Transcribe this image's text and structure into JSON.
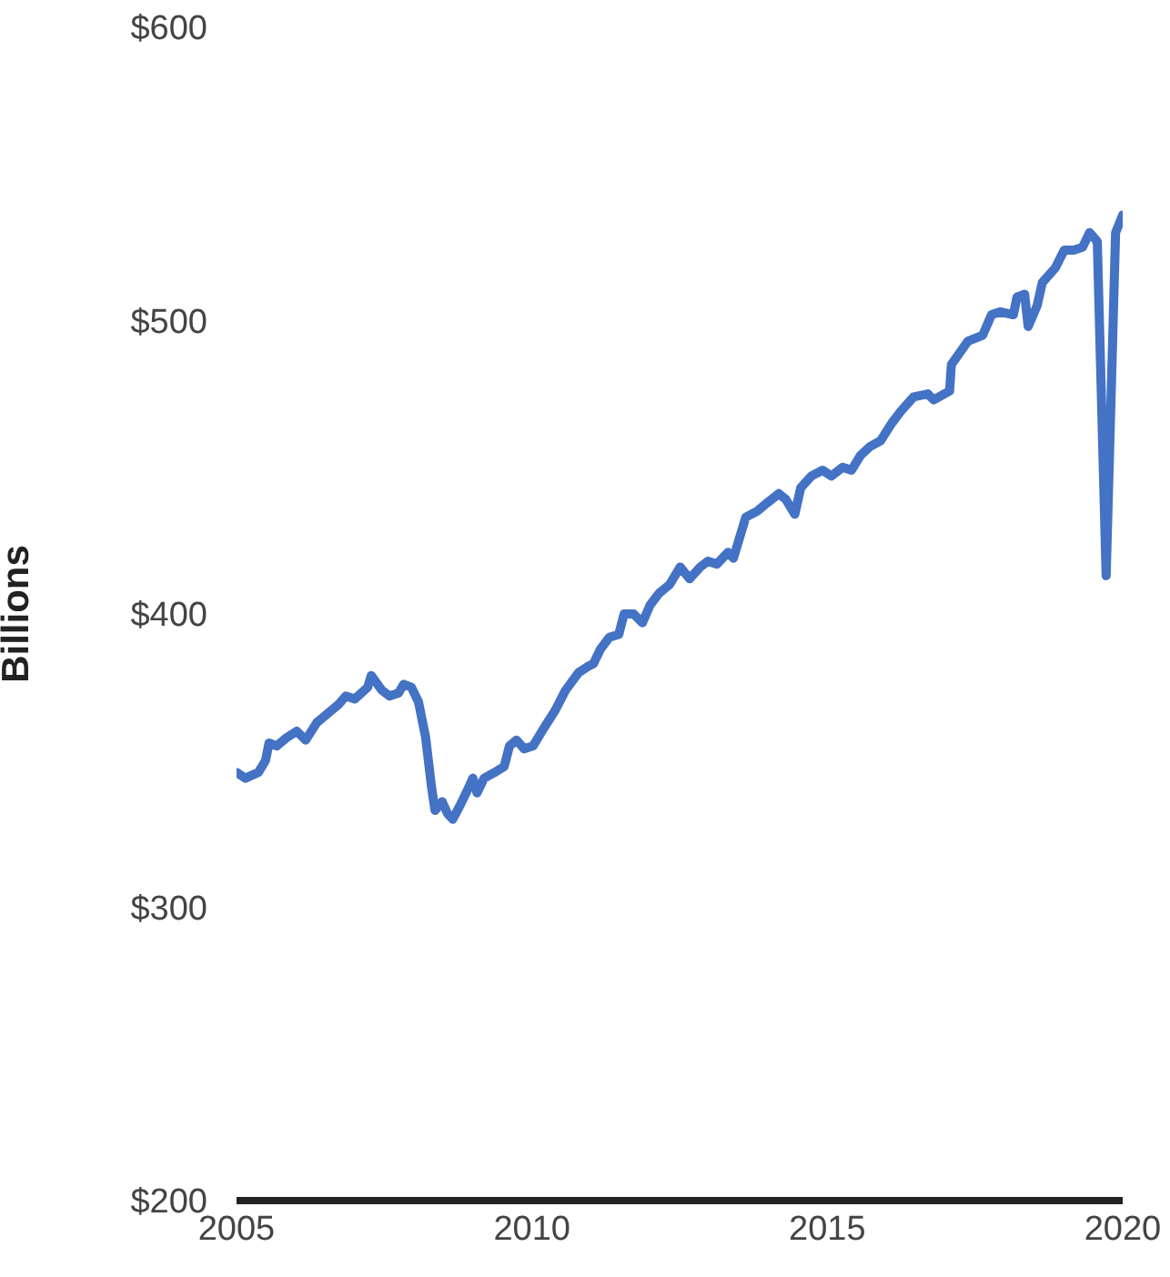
{
  "chart_data": {
    "type": "line",
    "ylabel": "Billions",
    "xlim": [
      2005,
      2020
    ],
    "xticks": [
      2005,
      2010,
      2015,
      2020
    ],
    "ylim": [
      200,
      600
    ],
    "yticks": [
      {
        "value": 200,
        "label": "$200"
      },
      {
        "value": 300,
        "label": "$300"
      },
      {
        "value": 400,
        "label": "$400"
      },
      {
        "value": 500,
        "label": "$500"
      },
      {
        "value": 600,
        "label": "$600"
      }
    ],
    "grid": false,
    "legend": false,
    "marker": "none",
    "line_style": "solid",
    "x": [
      2005.0,
      2005.15,
      2005.37,
      2005.49,
      2005.55,
      2005.68,
      2005.86,
      2006.02,
      2006.17,
      2006.36,
      2006.54,
      2006.72,
      2006.85,
      2007.0,
      2007.22,
      2007.28,
      2007.46,
      2007.59,
      2007.74,
      2007.83,
      2007.96,
      2008.08,
      2008.2,
      2008.3,
      2008.36,
      2008.48,
      2008.57,
      2008.66,
      2008.79,
      2008.91,
      2009.0,
      2009.07,
      2009.19,
      2009.37,
      2009.53,
      2009.62,
      2009.74,
      2009.87,
      2010.02,
      2010.2,
      2010.39,
      2010.57,
      2010.79,
      2010.94,
      2011.04,
      2011.16,
      2011.31,
      2011.47,
      2011.56,
      2011.72,
      2011.87,
      2012.0,
      2012.15,
      2012.33,
      2012.51,
      2012.67,
      2012.85,
      2012.98,
      2013.13,
      2013.32,
      2013.41,
      2013.62,
      2013.81,
      2013.99,
      2014.18,
      2014.3,
      2014.45,
      2014.55,
      2014.73,
      2014.92,
      2015.07,
      2015.26,
      2015.41,
      2015.56,
      2015.72,
      2015.9,
      2016.09,
      2016.24,
      2016.46,
      2016.7,
      2016.8,
      2017.07,
      2017.1,
      2017.38,
      2017.63,
      2017.78,
      2017.93,
      2018.15,
      2018.21,
      2018.34,
      2018.4,
      2018.55,
      2018.64,
      2018.86,
      2019.01,
      2019.17,
      2019.32,
      2019.44,
      2019.57,
      2019.72,
      2019.88,
      2020.0
    ],
    "series": [
      {
        "color": "#4472c4",
        "values": [
          346,
          344,
          346,
          350,
          356,
          355,
          358,
          360,
          357,
          363,
          366,
          369,
          372,
          371,
          375,
          379,
          374,
          372,
          373,
          376,
          375,
          370,
          358,
          341,
          333,
          336,
          332,
          330,
          335,
          340,
          344,
          339,
          344,
          346,
          348,
          355,
          357,
          354,
          355,
          361,
          367,
          374,
          380,
          382,
          383,
          388,
          392,
          393,
          400,
          400,
          397,
          403,
          407,
          410,
          416,
          412,
          416,
          418,
          417,
          421,
          419,
          433,
          435,
          438,
          441,
          439,
          434,
          443,
          447,
          449,
          447,
          450,
          449,
          454,
          457,
          459,
          465,
          469,
          474,
          475,
          473,
          476,
          485,
          493,
          495,
          502,
          503,
          502,
          508,
          509,
          498,
          505,
          513,
          518,
          524,
          524,
          525,
          530,
          527,
          413,
          530,
          536
        ]
      }
    ]
  }
}
